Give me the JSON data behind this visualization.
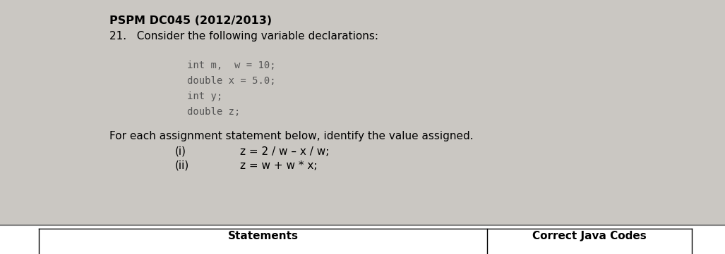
{
  "bg_color": "#cac7c2",
  "text_area_bg": "#cac7c2",
  "title_bold": "PSPM DC045 (2012/2013)",
  "line2": "21.   Consider the following variable declarations:",
  "code_lines": [
    "int m,  w = 10;",
    "double x = 5.0;",
    "int y;",
    "double z;"
  ],
  "para_line": "For each assignment statement below, identify the value assigned.",
  "items": [
    [
      "(i)",
      "z = 2 / w – x / w;"
    ],
    [
      "(ii)",
      "z = w + w * x;"
    ]
  ],
  "table_header_left": "Statements",
  "table_header_right": "Correct Java Codes",
  "font_size_title": 11.5,
  "font_size_body": 11,
  "font_size_code": 10,
  "font_size_table": 11
}
